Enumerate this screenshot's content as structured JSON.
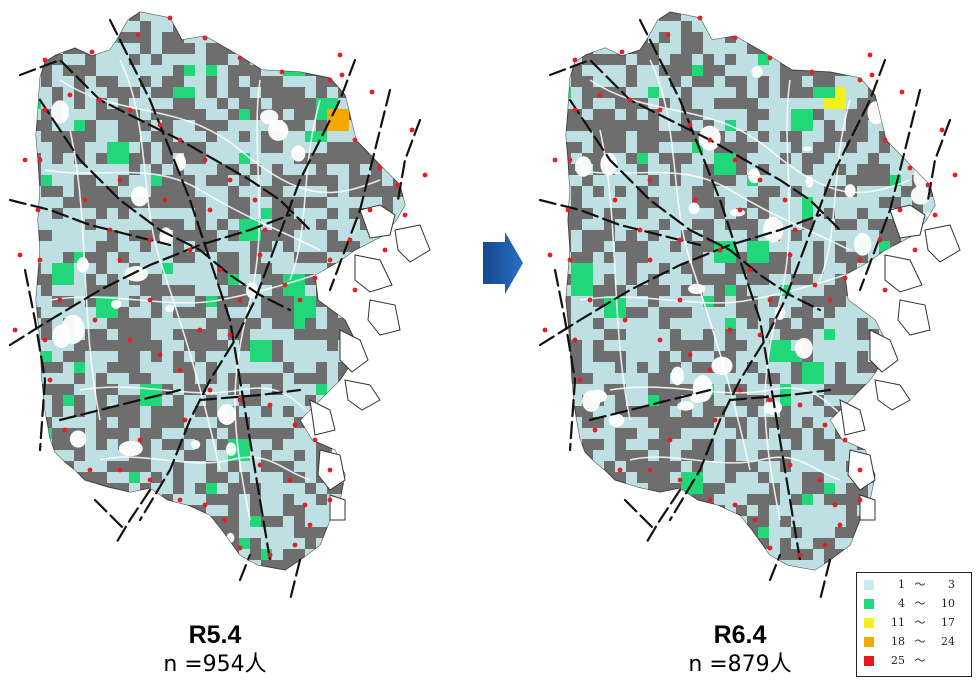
{
  "maps": [
    {
      "era": "R5.4",
      "count": "n =954人"
    },
    {
      "era": "R6.4",
      "count": "n =879人"
    }
  ],
  "legend": {
    "items": [
      {
        "min": "1",
        "sep": "～",
        "max": "3",
        "color": "#c6ecef"
      },
      {
        "min": "4",
        "sep": "～",
        "max": "10",
        "color": "#22d67a"
      },
      {
        "min": "11",
        "sep": "～",
        "max": "17",
        "color": "#f5ef1c"
      },
      {
        "min": "18",
        "sep": "～",
        "max": "24",
        "color": "#f5a800"
      },
      {
        "min": "25",
        "sep": "～",
        "max": "",
        "color": "#e8161c"
      }
    ]
  },
  "colors": {
    "background_fill": "#6e6e6e",
    "road": "#ffffff",
    "rail": "#111111",
    "station": "#e31e24",
    "arrow": "#1f5aa6"
  },
  "icons": {
    "arrow": "right-arrow-icon"
  }
}
